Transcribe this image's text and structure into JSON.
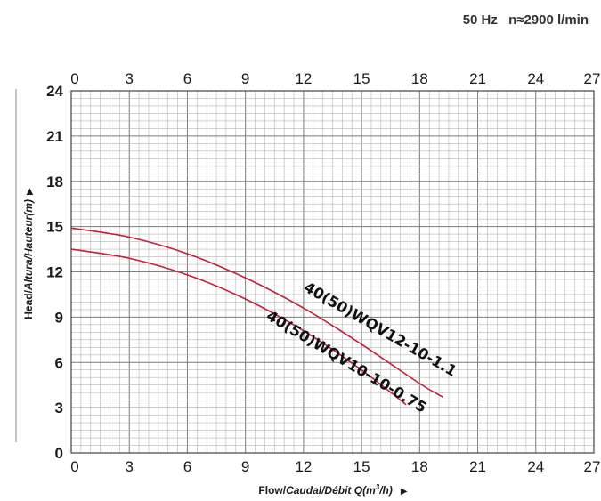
{
  "header": {
    "frequency": "50 Hz",
    "speed": "n≈2900 l/min"
  },
  "chart_data": {
    "type": "line",
    "xlabel_main": "Flow/",
    "xlabel_italic": "Caudal/Débit Q(m",
    "xlabel_sup": "3",
    "xlabel_end": "/h)",
    "ylabel_main": "Head/",
    "ylabel_italic": "Altura/Hauteur(m)",
    "xlim": [
      0,
      27
    ],
    "ylim": [
      0,
      24
    ],
    "x_ticks": [
      "0",
      "3",
      "6",
      "9",
      "12",
      "15",
      "18",
      "21",
      "24",
      "27"
    ],
    "y_ticks": [
      "0",
      "3",
      "6",
      "9",
      "12",
      "15",
      "18",
      "21",
      "24"
    ],
    "grid": true,
    "series": [
      {
        "name": "40(50)WQV12-10-1.1",
        "color": "#c41e3a",
        "x": [
          0,
          3,
          6,
          9,
          12,
          15,
          18,
          19.2
        ],
        "y": [
          14.9,
          14.3,
          13.2,
          11.6,
          9.6,
          7.2,
          4.6,
          3.7
        ]
      },
      {
        "name": "40(50)WQV10-10-0.75",
        "color": "#c41e3a",
        "x": [
          0,
          3,
          6,
          9,
          12,
          15,
          17.3
        ],
        "y": [
          13.5,
          12.9,
          11.8,
          10.2,
          8.1,
          5.5,
          3.2
        ]
      }
    ]
  }
}
